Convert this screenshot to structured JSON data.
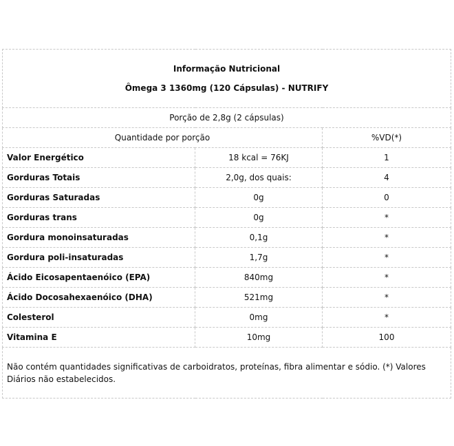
{
  "title": "Informação Nutricional",
  "product": "Ômega 3 1360mg (120 Cápsulas) - NUTRIFY",
  "portion": "Porção de 2,8g (2 cápsulas)",
  "header": {
    "quantity": "Quantidade por porção",
    "vd": "%VD(*)"
  },
  "rows": [
    {
      "name": "Valor Energético",
      "amount": "18 kcal = 76KJ",
      "vd": "1"
    },
    {
      "name": "Gorduras Totais",
      "amount": "2,0g, dos quais:",
      "vd": "4"
    },
    {
      "name": "Gorduras Saturadas",
      "amount": "0g",
      "vd": "0"
    },
    {
      "name": "Gorduras trans",
      "amount": "0g",
      "vd": "*"
    },
    {
      "name": "Gordura monoinsaturadas",
      "amount": "0,1g",
      "vd": "*"
    },
    {
      "name": "Gordura poli-insaturadas",
      "amount": "1,7g",
      "vd": "*"
    },
    {
      "name": "Ácido Eicosapentaenóico (EPA)",
      "amount": "840mg",
      "vd": "*"
    },
    {
      "name": "Ácido Docosahexaenóico (DHA)",
      "amount": "521mg",
      "vd": "*"
    },
    {
      "name": "Colesterol",
      "amount": "0mg",
      "vd": "*"
    },
    {
      "name": "Vitamina E",
      "amount": "10mg",
      "vd": "100"
    }
  ],
  "footnote": "Não contém quantidades significativas de carboidratos, proteínas, fibra alimentar e sódio. (*) Valores Diários não estabelecidos."
}
